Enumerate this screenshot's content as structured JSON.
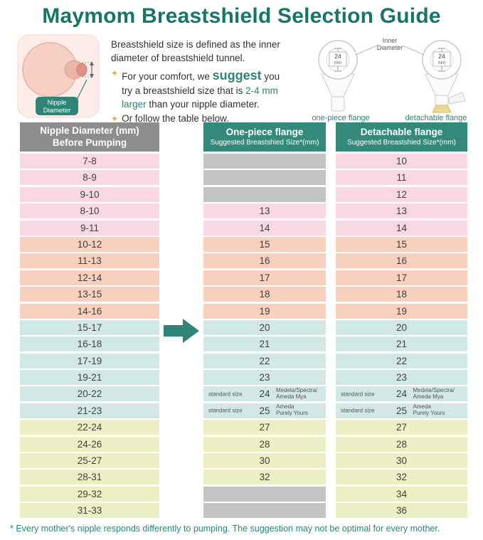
{
  "title": "Maymom Breastshield Selection Guide",
  "intro": {
    "definition": "Breastshield size is defined as the inner diameter of breastshield tunnel.",
    "bullet_icon": "✦",
    "suggestion": {
      "p1": "For your comfort, we ",
      "highlight1": "suggest",
      "p2": " you try a breastshield size that is ",
      "highlight2": "2-4 mm larger",
      "p3": " than your nipple diameter."
    },
    "bullet2": "Or follow the table below."
  },
  "diagrams": {
    "nipple_label_line1": "Nipple",
    "nipple_label_line2": "Diameter",
    "inner_label_line1": "Inner",
    "inner_label_line2": "Diameter",
    "size_value": "24",
    "size_unit": "mm",
    "one_piece_caption": "one-piece flange",
    "detachable_caption": "detachable flange"
  },
  "table": {
    "headers": [
      {
        "line1": "Nipple Diameter (mm)",
        "line2": "Before Pumping"
      },
      {
        "line1": "One-piece flange",
        "line2": "Suggested Breastshied Size*(mm)"
      },
      {
        "line1": "Detachable flange",
        "line2": "Suggested Breastshied Size*(mm)"
      }
    ],
    "rows": [
      {
        "nipple": "7-8",
        "onepiece": null,
        "detachable": "10",
        "tone": "pink"
      },
      {
        "nipple": "8-9",
        "onepiece": null,
        "detachable": "11",
        "tone": "pink"
      },
      {
        "nipple": "9-10",
        "onepiece": null,
        "detachable": "12",
        "tone": "pink"
      },
      {
        "nipple": "8-10",
        "onepiece": "13",
        "detachable": "13",
        "tone": "pink"
      },
      {
        "nipple": "9-11",
        "onepiece": "14",
        "detachable": "14",
        "tone": "pink"
      },
      {
        "nipple": "10-12",
        "onepiece": "15",
        "detachable": "15",
        "tone": "peach"
      },
      {
        "nipple": "11-13",
        "onepiece": "16",
        "detachable": "16",
        "tone": "peach"
      },
      {
        "nipple": "12-14",
        "onepiece": "17",
        "detachable": "17",
        "tone": "peach"
      },
      {
        "nipple": "13-15",
        "onepiece": "18",
        "detachable": "18",
        "tone": "peach"
      },
      {
        "nipple": "14-16",
        "onepiece": "19",
        "detachable": "19",
        "tone": "peach"
      },
      {
        "nipple": "15-17",
        "onepiece": "20",
        "detachable": "20",
        "tone": "cyan"
      },
      {
        "nipple": "16-18",
        "onepiece": "21",
        "detachable": "21",
        "tone": "cyan"
      },
      {
        "nipple": "17-19",
        "onepiece": "22",
        "detachable": "22",
        "tone": "cyan"
      },
      {
        "nipple": "19-21",
        "onepiece": "23",
        "detachable": "23",
        "tone": "cyan"
      },
      {
        "nipple": "20-22",
        "onepiece": "24",
        "detachable": "24",
        "tone": "cyan",
        "prefix": "standard size",
        "suffix_lines": [
          "Medela/Spectra/",
          "Ameda Mya"
        ]
      },
      {
        "nipple": "21-23",
        "onepiece": "25",
        "detachable": "25",
        "tone": "cyan",
        "prefix": "standard size",
        "suffix_lines": [
          "Ameda",
          "Purely Yours"
        ]
      },
      {
        "nipple": "22-24",
        "onepiece": "27",
        "detachable": "27",
        "tone": "yellow"
      },
      {
        "nipple": "24-26",
        "onepiece": "28",
        "detachable": "28",
        "tone": "yellow"
      },
      {
        "nipple": "25-27",
        "onepiece": "30",
        "detachable": "30",
        "tone": "yellow"
      },
      {
        "nipple": "28-31",
        "onepiece": "32",
        "detachable": "32",
        "tone": "yellow"
      },
      {
        "nipple": "29-32",
        "onepiece": null,
        "detachable": "34",
        "tone": "yellow"
      },
      {
        "nipple": "31-33",
        "onepiece": null,
        "detachable": "36",
        "tone": "yellow"
      }
    ]
  },
  "footer": "* Every mother's nipple responds differently to pumping. The suggestion may not be optimal for every mother.",
  "colors": {
    "accent_teal": "#2E8577",
    "header_gray": "#8D8D8D",
    "header_teal": "#35897A",
    "row_tones": {
      "pink": "#F9D8E1",
      "peach": "#F7D0BE",
      "cyan": "#D2E8E5",
      "yellow": "#EDEFC5",
      "gray": "#C3C3C3"
    }
  }
}
